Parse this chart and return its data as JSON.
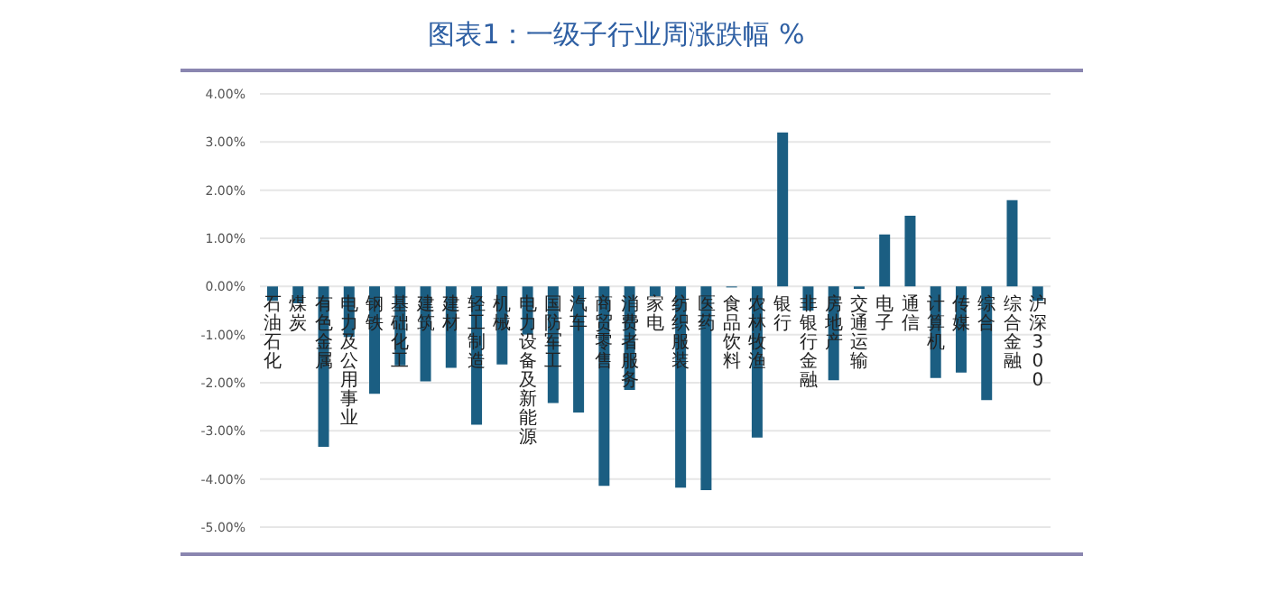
{
  "chart_data": {
    "type": "bar",
    "title": "图表1：一级子行业周涨跌幅 %",
    "categories": [
      "石油石化",
      "煤炭",
      "有色金属",
      "电力及公用事业",
      "钢铁",
      "基础化工",
      "建筑",
      "建材",
      "轻工制造",
      "机械",
      "电力设备及新能源",
      "国防军工",
      "汽车",
      "商贸零售",
      "消费者服务",
      "家电",
      "纺织服装",
      "医药",
      "食品饮料",
      "农林牧渔",
      "银行",
      "非银行金融",
      "房地产",
      "交通运输",
      "电子",
      "通信",
      "计算机",
      "传媒",
      "综合",
      "综合金融",
      "沪深300"
    ],
    "values": [
      -0.3,
      -0.35,
      -3.33,
      -1.05,
      -2.23,
      -1.64,
      -1.97,
      -1.69,
      -2.87,
      -1.62,
      -1.0,
      -2.42,
      -2.62,
      -4.14,
      -2.15,
      -0.2,
      -4.18,
      -4.23,
      -0.02,
      -3.14,
      3.2,
      -0.5,
      -1.95,
      -0.05,
      1.08,
      1.47,
      -1.9,
      -1.79,
      -2.36,
      1.79,
      -0.3
    ],
    "color": "#1b5e82",
    "ylim": [
      -5,
      4
    ],
    "yticks": [
      {
        "value": -5,
        "label": "-5.00%"
      },
      {
        "value": -4,
        "label": "-4.00%"
      },
      {
        "value": -3,
        "label": "-3.00%"
      },
      {
        "value": -2,
        "label": "-2.00%"
      },
      {
        "value": -1,
        "label": "-1.00%"
      },
      {
        "value": 0,
        "label": "0.00%"
      },
      {
        "value": 1,
        "label": "1.00%"
      },
      {
        "value": 2,
        "label": "2.00%"
      },
      {
        "value": 3,
        "label": "3.00%"
      },
      {
        "value": 4,
        "label": "4.00%"
      }
    ],
    "grid": "y"
  }
}
